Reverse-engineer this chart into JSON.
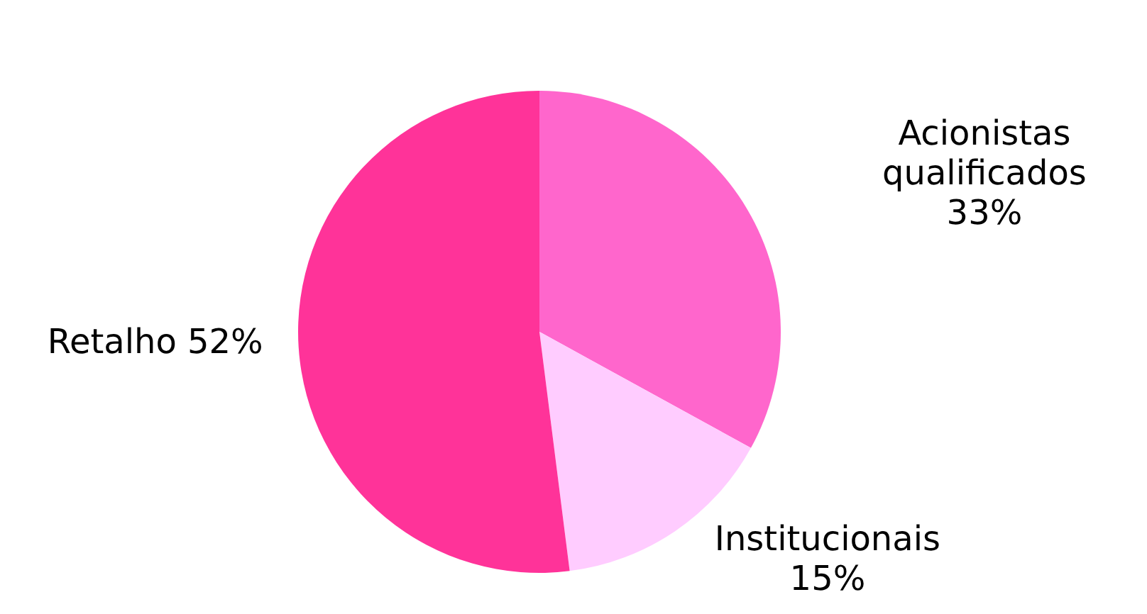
{
  "chart_data": {
    "type": "pie",
    "categories": [
      "Acionistas qualificados",
      "Institucionais",
      "Retalho"
    ],
    "values": [
      33,
      15,
      52
    ],
    "value_labels": [
      "33%",
      "15%",
      "52%"
    ],
    "colors": [
      "#ff66cc",
      "#ffccff",
      "#ff3399"
    ],
    "legend": false
  }
}
